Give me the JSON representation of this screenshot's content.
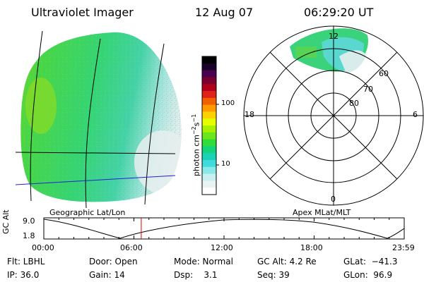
{
  "header": {
    "instrument": "Ultraviolet Imager",
    "date": "12 Aug 07",
    "time": "06:29:20 UT"
  },
  "colorbar": {
    "label": "photon cm-2s-1",
    "ticks": [
      "100",
      "10"
    ],
    "colors": [
      "#000000",
      "#1a0026",
      "#4a0050",
      "#7a0030",
      "#b0001a",
      "#e0201a",
      "#f06000",
      "#ff9a00",
      "#ffd000",
      "#e6ff00",
      "#a8f000",
      "#6ae61a",
      "#2edc3a",
      "#14d47a",
      "#1ad2b8",
      "#40dcdc",
      "#8ae8e8",
      "#c8f0f0",
      "#e8f4f4",
      "#ffffff"
    ]
  },
  "left_panel": {
    "caption": "Geographic Lat/Lon"
  },
  "polar_plot": {
    "caption": "Apex MLat/MLT",
    "mlt_labels": {
      "top": "12",
      "bottom": "0",
      "left": "18",
      "right": "6"
    },
    "lat_labels": [
      "60",
      "70",
      "80"
    ]
  },
  "timeline": {
    "ylabel": "GC Alt",
    "yticks": [
      "9.0",
      "1.8"
    ],
    "xticks": [
      "00:00",
      "06:00",
      "12:00",
      "18:00",
      "23:59"
    ],
    "current_time_hours": 6.49,
    "marker_color": "#e00000"
  },
  "info": {
    "flt": "Flt: LBHL",
    "ip": "IP: 36.0",
    "door": "Door: Open",
    "gain": "Gain: 14",
    "mode": "Mode: Normal",
    "dsp": "Dsp:    3.1",
    "gc_alt": "GC Alt: 4.2 Re",
    "seq": "Seq: 39",
    "glat": "GLat:  −41.3",
    "glon": "GLon:  96.9"
  }
}
